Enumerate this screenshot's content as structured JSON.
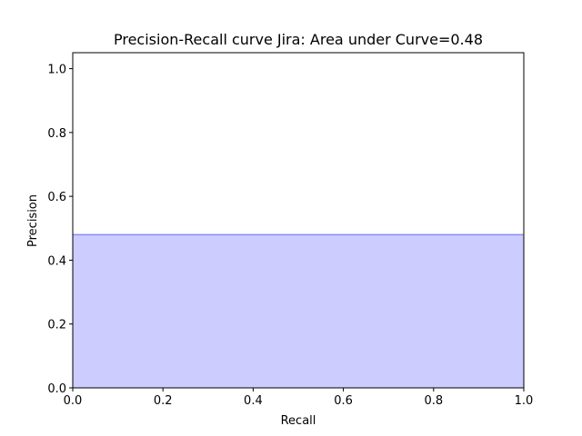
{
  "chart_data": {
    "type": "area",
    "title": "Precision-Recall curve Jira: Area under Curve=0.48",
    "xlabel": "Recall",
    "ylabel": "Precision",
    "xlim": [
      0.0,
      1.0
    ],
    "ylim": [
      0.0,
      1.05
    ],
    "xticks": [
      "0.0",
      "0.2",
      "0.4",
      "0.6",
      "0.8",
      "1.0"
    ],
    "yticks": [
      "0.0",
      "0.2",
      "0.4",
      "0.6",
      "0.8",
      "1.0"
    ],
    "grid": false,
    "series": [
      {
        "x": [
          0.0,
          1.0
        ],
        "y": [
          0.48,
          0.48
        ],
        "line_color": "#8a8af0",
        "fill_color": "#ccccff"
      }
    ]
  }
}
